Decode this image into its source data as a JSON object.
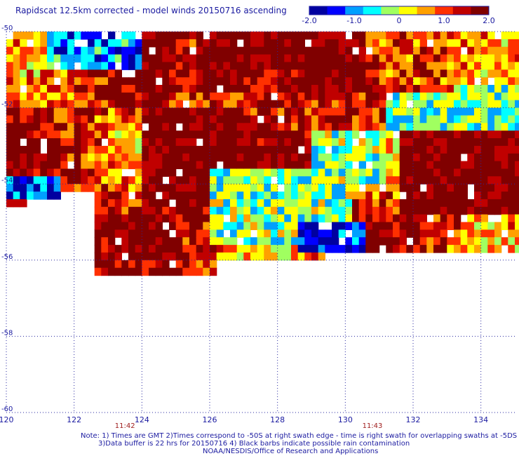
{
  "title": "Rapidscat 12.5km corrected - model winds 20150716 ascending",
  "chart_data": {
    "type": "heatmap",
    "title": "Rapidscat 12.5km corrected - model winds 20150716 ascending",
    "colorbar": {
      "ticks": [
        "-2.0",
        "-1.0",
        "0",
        "1.0",
        "2.0"
      ],
      "range": [
        -2.0,
        2.0
      ],
      "colors": [
        "#0000a0",
        "#0000ff",
        "#00a0ff",
        "#00ffff",
        "#a0ff60",
        "#ffff00",
        "#ffa000",
        "#ff3000",
        "#c00000",
        "#800000"
      ]
    },
    "xlim": [
      120,
      135
    ],
    "ylim": [
      -60,
      -50
    ],
    "x_ticks": [
      "120",
      "122",
      "124",
      "126",
      "128",
      "130",
      "132",
      "134"
    ],
    "y_ticks": [
      "-50",
      "-52",
      "-54",
      "-56",
      "-58",
      "-60"
    ],
    "time_labels": [
      {
        "x": 123.5,
        "text": "11:42"
      },
      {
        "x": 130.8,
        "text": "11:43"
      }
    ],
    "swath": {
      "lon_range": [
        120,
        135
      ],
      "lat_top": -50,
      "south_edge": [
        {
          "lon": 120,
          "lat": -54.5
        },
        {
          "lon": 121.2,
          "lat": -54.3
        },
        {
          "lon": 122.6,
          "lat": -54.0
        },
        {
          "lon": 122.6,
          "lat": -56.3
        },
        {
          "lon": 124.3,
          "lat": -56.4
        },
        {
          "lon": 126.1,
          "lat": -56.4
        },
        {
          "lon": 126.2,
          "lat": -56.0
        },
        {
          "lon": 128.2,
          "lat": -55.9
        },
        {
          "lon": 129.5,
          "lat": -55.8
        },
        {
          "lon": 135,
          "lat": -55.8
        }
      ],
      "regions": [
        {
          "lon": [
            125.5,
            130.5
          ],
          "lat": [
            -51.5,
            -50.0
          ],
          "value": 2.0
        },
        {
          "lon": [
            131.0,
            135.0
          ],
          "lat": [
            -52.8,
            -51.4
          ],
          "value": -0.4
        },
        {
          "lon": [
            121.2,
            124.0
          ],
          "lat": [
            -51.0,
            -50.0
          ],
          "value": -1.0
        },
        {
          "lon": [
            120.0,
            122.0
          ],
          "lat": [
            -52.0,
            -51.0
          ],
          "value": 0.7
        },
        {
          "lon": [
            120.0,
            121.5
          ],
          "lat": [
            -54.3,
            -53.7
          ],
          "value": -1.2
        },
        {
          "lon": [
            123.0,
            125.0
          ],
          "lat": [
            -56.0,
            -54.8
          ],
          "value": 2.0
        },
        {
          "lon": [
            124.0,
            127.0
          ],
          "lat": [
            -54.5,
            -52.0
          ],
          "value": 2.0
        },
        {
          "lon": [
            126.0,
            130.0
          ],
          "lat": [
            -55.5,
            -53.5
          ],
          "value": -0.3
        },
        {
          "lon": [
            128.5,
            130.5
          ],
          "lat": [
            -55.8,
            -55.0
          ],
          "value": -1.5
        },
        {
          "lon": [
            131.5,
            135.0
          ],
          "lat": [
            -54.8,
            -52.5
          ],
          "value": 2.0
        },
        {
          "lon": [
            129.0,
            131.0
          ],
          "lat": [
            -54.0,
            -52.5
          ],
          "value": -0.2
        },
        {
          "lon": [
            127.0,
            129.0
          ],
          "lat": [
            -52.0,
            -51.0
          ],
          "value": 1.6
        },
        {
          "lon": [
            130.5,
            133.0
          ],
          "lat": [
            -51.5,
            -50.0
          ],
          "value": 1.1
        }
      ]
    },
    "grid": "dotted"
  },
  "notes": {
    "line1": "Note: 1) Times are GMT 2)Times correspond to -50S at right swath edge - time is right swath for overlapping swaths at -5DS",
    "line2": "3)Data buffer is 22 hrs for 20150716 4) Black barbs indicate possible rain contamination",
    "line3": "NOAA/NESDIS/Office of Research and Applications"
  }
}
